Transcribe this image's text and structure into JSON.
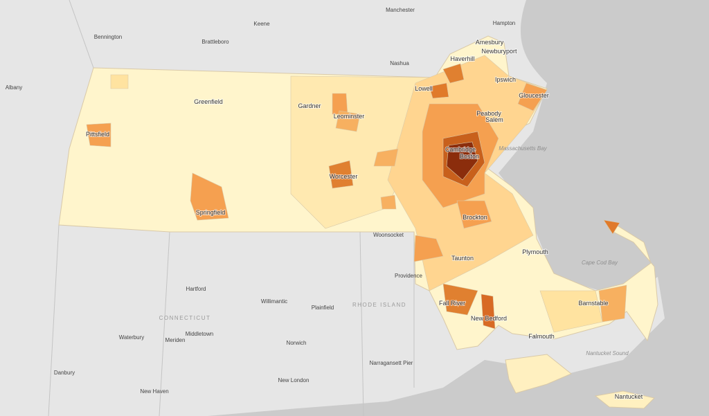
{
  "labels": {
    "cities": [
      "Manchester",
      "Hampton",
      "Keene",
      "Bennington",
      "Brattleboro",
      "Nashua",
      "Amesbury",
      "Newburyport",
      "Haverhill",
      "Albany",
      "Ipswich",
      "Lowell",
      "Gloucester",
      "Greenfield",
      "Gardner",
      "Peabody",
      "Salem",
      "Leominster",
      "Pittsfield",
      "Cambridge",
      "Boston",
      "Worcester",
      "Springfield",
      "Brockton",
      "Woonsocket",
      "Plymouth",
      "Taunton",
      "Providence",
      "Hartford",
      "Willimantic",
      "Plainfield",
      "Fall River",
      "New Bedford",
      "Barnstable",
      "Waterbury",
      "Meriden",
      "Middletown",
      "Falmouth",
      "Norwich",
      "Narragansett Pier",
      "Danbury",
      "New London",
      "New Haven",
      "Nantucket"
    ],
    "water": [
      "Massachusetts Bay",
      "Cape Cod Bay",
      "Nantucket Sound"
    ],
    "states": [
      "RHODE ISLAND",
      "CONNECTICUT"
    ]
  }
}
